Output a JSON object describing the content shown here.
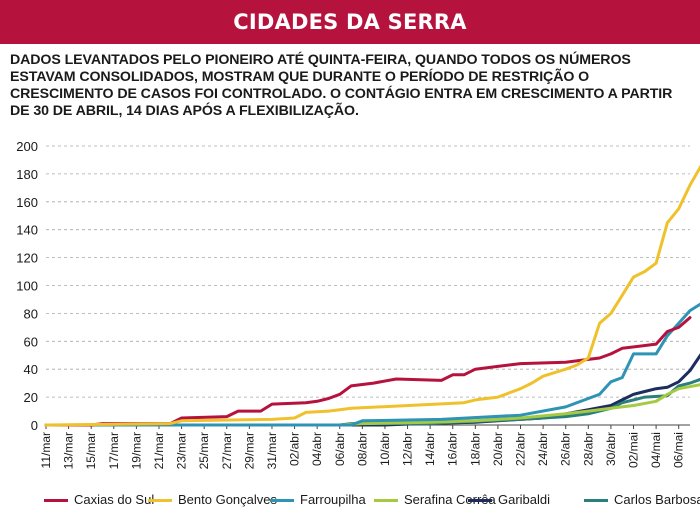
{
  "header": {
    "title": "CIDADES DA SERRA"
  },
  "subtitle": "DADOS LEVANTADOS PELO PIONEIRO ATÉ QUINTA-FEIRA, QUANDO TODOS OS NÚMEROS ESTAVAM CONSOLIDADOS, MOSTRAM QUE DURANTE O PERÍODO DE RESTRIÇÃO O CRESCIMENTO DE CASOS FOI CONTROLADO. O CONTÁGIO ENTRA EM CRESCIMENTO A PARTIR DE 30 DE ABRIL, 14 DIAS APÓS A FLEXIBILIZAÇÃO.",
  "chart_data": {
    "type": "line",
    "ylim": [
      0,
      200
    ],
    "yticks": [
      0,
      20,
      40,
      60,
      80,
      100,
      120,
      140,
      160,
      180,
      200
    ],
    "grid": "horizontal dashed",
    "legend_position": "bottom",
    "xlim": [
      "11/mar",
      "07/mai"
    ],
    "xtick_labels": [
      "11/mar",
      "13/mar",
      "15/mar",
      "17/mar",
      "19/mar",
      "21/mar",
      "23/mar",
      "25/mar",
      "27/mar",
      "29/mar",
      "31/mar",
      "02/abr",
      "04/abr",
      "06/abr",
      "08/abr",
      "10/abr",
      "12/abr",
      "14/abr",
      "16/abr",
      "18/abr",
      "20/abr",
      "22/abr",
      "24/abr",
      "26/abr",
      "28/abr",
      "30/abr",
      "02/mai",
      "04/mai",
      "06/mai"
    ],
    "series": [
      {
        "name": "Caxias do Sul",
        "color": "#b5123e",
        "points": [
          [
            "11/mar",
            0
          ],
          [
            "15/mar",
            0
          ],
          [
            "16/mar",
            1
          ],
          [
            "22/mar",
            1
          ],
          [
            "23/mar",
            5
          ],
          [
            "27/mar",
            6
          ],
          [
            "28/mar",
            10
          ],
          [
            "30/mar",
            10
          ],
          [
            "31/mar",
            15
          ],
          [
            "03/abr",
            16
          ],
          [
            "04/abr",
            17
          ],
          [
            "05/abr",
            19
          ],
          [
            "06/abr",
            22
          ],
          [
            "07/abr",
            28
          ],
          [
            "09/abr",
            30
          ],
          [
            "11/abr",
            33
          ],
          [
            "15/abr",
            32
          ],
          [
            "16/abr",
            36
          ],
          [
            "17/abr",
            36
          ],
          [
            "18/abr",
            40
          ],
          [
            "20/abr",
            42
          ],
          [
            "22/abr",
            44
          ],
          [
            "26/abr",
            45
          ],
          [
            "28/abr",
            47
          ],
          [
            "29/abr",
            48
          ],
          [
            "30/abr",
            51
          ],
          [
            "01/mai",
            55
          ],
          [
            "04/mai",
            58
          ],
          [
            "05/mai",
            67
          ],
          [
            "06/mai",
            70
          ],
          [
            "07/mai",
            77
          ]
        ]
      },
      {
        "name": "Bento Gonçalves",
        "color": "#efc12c",
        "points": [
          [
            "11/mar",
            0
          ],
          [
            "22/mar",
            1
          ],
          [
            "23/mar",
            3
          ],
          [
            "31/mar",
            4
          ],
          [
            "02/abr",
            5
          ],
          [
            "03/abr",
            9
          ],
          [
            "05/abr",
            10
          ],
          [
            "06/abr",
            11
          ],
          [
            "07/abr",
            12
          ],
          [
            "17/abr",
            16
          ],
          [
            "18/abr",
            18
          ],
          [
            "20/abr",
            20
          ],
          [
            "21/abr",
            23
          ],
          [
            "22/abr",
            26
          ],
          [
            "23/abr",
            30
          ],
          [
            "24/abr",
            35
          ],
          [
            "26/abr",
            40
          ],
          [
            "27/abr",
            43
          ],
          [
            "28/abr",
            48
          ],
          [
            "29/abr",
            73
          ],
          [
            "30/abr",
            80
          ],
          [
            "01/mai",
            93
          ],
          [
            "02/mai",
            106
          ],
          [
            "03/mai",
            110
          ],
          [
            "04/mai",
            116
          ],
          [
            "05/mai",
            145
          ],
          [
            "06/mai",
            155
          ],
          [
            "07/mai",
            172
          ],
          [
            "08/mai",
            186
          ]
        ]
      },
      {
        "name": "Farroupilha",
        "color": "#2e93b5",
        "points": [
          [
            "11/mar",
            0
          ],
          [
            "07/abr",
            0
          ],
          [
            "08/abr",
            3
          ],
          [
            "15/abr",
            4
          ],
          [
            "22/abr",
            7
          ],
          [
            "26/abr",
            13
          ],
          [
            "28/abr",
            19
          ],
          [
            "29/abr",
            22
          ],
          [
            "30/abr",
            31
          ],
          [
            "01/mai",
            34
          ],
          [
            "02/mai",
            51
          ],
          [
            "03/mai",
            51
          ],
          [
            "04/mai",
            51
          ],
          [
            "05/mai",
            64
          ],
          [
            "06/mai",
            73
          ],
          [
            "07/mai",
            82
          ],
          [
            "08/mai",
            87
          ]
        ]
      },
      {
        "name": "Serafina Corrêa",
        "color": "#a5ca42",
        "points": [
          [
            "11/mar",
            0
          ],
          [
            "06/abr",
            0
          ],
          [
            "08/abr",
            1
          ],
          [
            "14/abr",
            2
          ],
          [
            "18/abr",
            3
          ],
          [
            "22/abr",
            5
          ],
          [
            "26/abr",
            8
          ],
          [
            "28/abr",
            10
          ],
          [
            "30/abr",
            12
          ],
          [
            "02/mai",
            14
          ],
          [
            "04/mai",
            17
          ],
          [
            "05/mai",
            22
          ],
          [
            "06/mai",
            26
          ],
          [
            "08/mai",
            29
          ]
        ]
      },
      {
        "name": "Garibaldi",
        "color": "#1c2d5e",
        "points": [
          [
            "11/mar",
            0
          ],
          [
            "10/abr",
            0
          ],
          [
            "13/abr",
            1
          ],
          [
            "18/abr",
            2
          ],
          [
            "20/abr",
            3
          ],
          [
            "24/abr",
            5
          ],
          [
            "26/abr",
            8
          ],
          [
            "28/abr",
            11
          ],
          [
            "30/abr",
            14
          ],
          [
            "01/mai",
            18
          ],
          [
            "02/mai",
            22
          ],
          [
            "03/mai",
            24
          ],
          [
            "04/mai",
            26
          ],
          [
            "05/mai",
            27
          ],
          [
            "06/mai",
            31
          ],
          [
            "07/mai",
            39
          ],
          [
            "08/mai",
            51
          ]
        ]
      },
      {
        "name": "Carlos Barbosa",
        "color": "#2a7e7b",
        "points": [
          [
            "11/mar",
            0
          ],
          [
            "06/abr",
            0
          ],
          [
            "07/abr",
            1
          ],
          [
            "14/abr",
            1
          ],
          [
            "16/abr",
            2
          ],
          [
            "22/abr",
            4
          ],
          [
            "26/abr",
            6
          ],
          [
            "28/abr",
            8
          ],
          [
            "30/abr",
            12
          ],
          [
            "01/mai",
            16
          ],
          [
            "03/mai",
            20
          ],
          [
            "05/mai",
            21
          ],
          [
            "06/mai",
            28
          ],
          [
            "07/mai",
            30
          ],
          [
            "08/mai",
            33
          ]
        ]
      }
    ]
  }
}
